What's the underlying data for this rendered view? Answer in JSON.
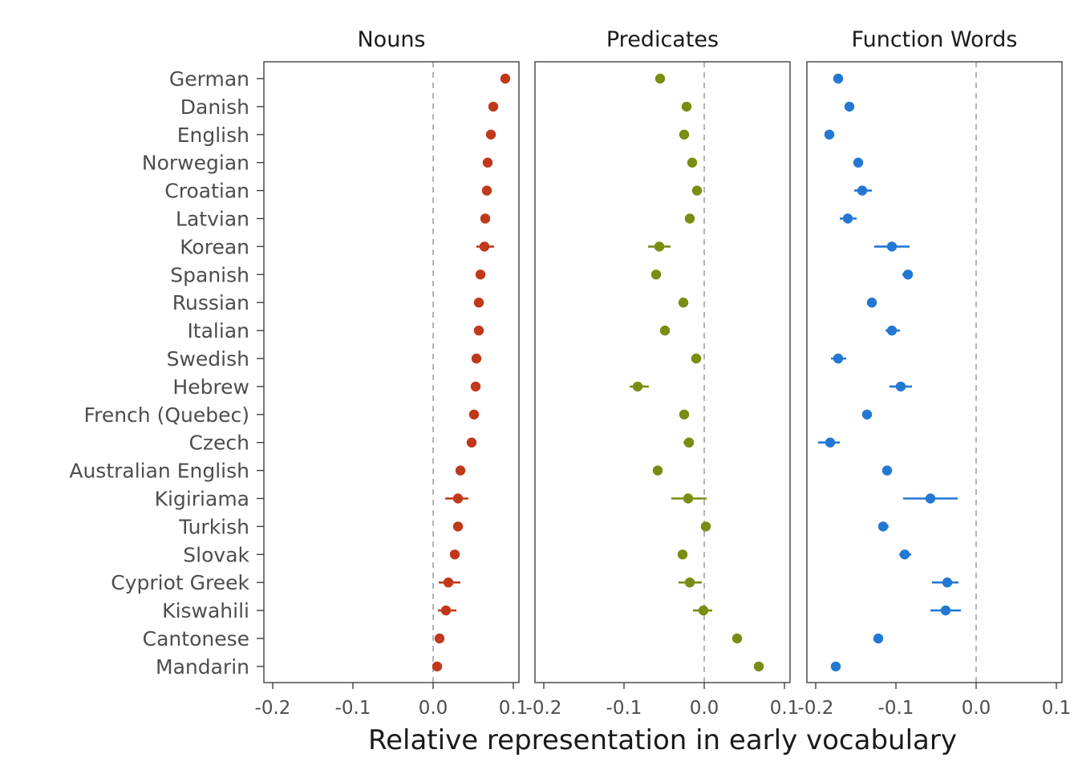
{
  "chart_data": {
    "type": "scatter",
    "xlabel": "Relative representation in early vocabulary",
    "xlim": [
      -0.2,
      0.1
    ],
    "xticks": [
      "-0.2",
      "-0.1",
      "0.0",
      "0.1"
    ],
    "reference_line_x": 0,
    "grid": false,
    "categories": [
      "German",
      "Danish",
      "English",
      "Norwegian",
      "Croatian",
      "Latvian",
      "Korean",
      "Spanish",
      "Russian",
      "Italian",
      "Swedish",
      "Hebrew",
      "French (Quebec)",
      "Czech",
      "Australian English",
      "Kigiriama",
      "Turkish",
      "Slovak",
      "Cypriot Greek",
      "Kiswahili",
      "Cantonese",
      "Mandarin"
    ],
    "panels": [
      {
        "title": "Nouns",
        "color": "#c0391b",
        "points": [
          {
            "x": 0.09,
            "lo": 0.09,
            "hi": 0.09
          },
          {
            "x": 0.075,
            "lo": 0.075,
            "hi": 0.075
          },
          {
            "x": 0.072,
            "lo": 0.072,
            "hi": 0.072
          },
          {
            "x": 0.068,
            "lo": 0.068,
            "hi": 0.068
          },
          {
            "x": 0.067,
            "lo": 0.067,
            "hi": 0.067
          },
          {
            "x": 0.065,
            "lo": 0.065,
            "hi": 0.065
          },
          {
            "x": 0.064,
            "lo": 0.054,
            "hi": 0.076
          },
          {
            "x": 0.059,
            "lo": 0.059,
            "hi": 0.059
          },
          {
            "x": 0.057,
            "lo": 0.057,
            "hi": 0.057
          },
          {
            "x": 0.057,
            "lo": 0.057,
            "hi": 0.057
          },
          {
            "x": 0.054,
            "lo": 0.054,
            "hi": 0.054
          },
          {
            "x": 0.053,
            "lo": 0.053,
            "hi": 0.053
          },
          {
            "x": 0.051,
            "lo": 0.051,
            "hi": 0.051
          },
          {
            "x": 0.048,
            "lo": 0.048,
            "hi": 0.048
          },
          {
            "x": 0.034,
            "lo": 0.034,
            "hi": 0.034
          },
          {
            "x": 0.031,
            "lo": 0.015,
            "hi": 0.044
          },
          {
            "x": 0.031,
            "lo": 0.031,
            "hi": 0.031
          },
          {
            "x": 0.027,
            "lo": 0.027,
            "hi": 0.027
          },
          {
            "x": 0.019,
            "lo": 0.007,
            "hi": 0.034
          },
          {
            "x": 0.016,
            "lo": 0.006,
            "hi": 0.029
          },
          {
            "x": 0.008,
            "lo": 0.008,
            "hi": 0.008
          },
          {
            "x": 0.005,
            "lo": 0.005,
            "hi": 0.005
          }
        ]
      },
      {
        "title": "Predicates",
        "color": "#7a8c12",
        "points": [
          {
            "x": -0.055,
            "lo": -0.055,
            "hi": -0.055
          },
          {
            "x": -0.022,
            "lo": -0.022,
            "hi": -0.022
          },
          {
            "x": -0.025,
            "lo": -0.025,
            "hi": -0.025
          },
          {
            "x": -0.015,
            "lo": -0.015,
            "hi": -0.015
          },
          {
            "x": -0.009,
            "lo": -0.014,
            "hi": -0.003
          },
          {
            "x": -0.018,
            "lo": -0.024,
            "hi": -0.012
          },
          {
            "x": -0.056,
            "lo": -0.07,
            "hi": -0.042
          },
          {
            "x": -0.06,
            "lo": -0.06,
            "hi": -0.06
          },
          {
            "x": -0.026,
            "lo": -0.026,
            "hi": -0.026
          },
          {
            "x": -0.049,
            "lo": -0.049,
            "hi": -0.049
          },
          {
            "x": -0.01,
            "lo": -0.01,
            "hi": -0.01
          },
          {
            "x": -0.083,
            "lo": -0.093,
            "hi": -0.069
          },
          {
            "x": -0.025,
            "lo": -0.025,
            "hi": -0.025
          },
          {
            "x": -0.019,
            "lo": -0.026,
            "hi": -0.013
          },
          {
            "x": -0.058,
            "lo": -0.058,
            "hi": -0.058
          },
          {
            "x": -0.02,
            "lo": -0.041,
            "hi": 0.003
          },
          {
            "x": 0.002,
            "lo": 0.002,
            "hi": 0.002
          },
          {
            "x": -0.027,
            "lo": -0.027,
            "hi": -0.027
          },
          {
            "x": -0.018,
            "lo": -0.032,
            "hi": -0.003
          },
          {
            "x": -0.001,
            "lo": -0.014,
            "hi": 0.01
          },
          {
            "x": 0.041,
            "lo": 0.041,
            "hi": 0.041
          },
          {
            "x": 0.068,
            "lo": 0.068,
            "hi": 0.068
          }
        ]
      },
      {
        "title": "Function Words",
        "color": "#2278d2",
        "points": [
          {
            "x": -0.172,
            "lo": -0.172,
            "hi": -0.172
          },
          {
            "x": -0.158,
            "lo": -0.158,
            "hi": -0.158
          },
          {
            "x": -0.183,
            "lo": -0.183,
            "hi": -0.183
          },
          {
            "x": -0.147,
            "lo": -0.147,
            "hi": -0.147
          },
          {
            "x": -0.142,
            "lo": -0.152,
            "hi": -0.13
          },
          {
            "x": -0.16,
            "lo": -0.17,
            "hi": -0.149
          },
          {
            "x": -0.105,
            "lo": -0.127,
            "hi": -0.083
          },
          {
            "x": -0.085,
            "lo": -0.092,
            "hi": -0.079
          },
          {
            "x": -0.13,
            "lo": -0.13,
            "hi": -0.13
          },
          {
            "x": -0.105,
            "lo": -0.113,
            "hi": -0.095
          },
          {
            "x": -0.172,
            "lo": -0.181,
            "hi": -0.162
          },
          {
            "x": -0.094,
            "lo": -0.108,
            "hi": -0.08
          },
          {
            "x": -0.136,
            "lo": -0.136,
            "hi": -0.136
          },
          {
            "x": -0.182,
            "lo": -0.197,
            "hi": -0.17
          },
          {
            "x": -0.111,
            "lo": -0.111,
            "hi": -0.111
          },
          {
            "x": -0.057,
            "lo": -0.091,
            "hi": -0.023
          },
          {
            "x": -0.116,
            "lo": -0.122,
            "hi": -0.109
          },
          {
            "x": -0.089,
            "lo": -0.096,
            "hi": -0.081
          },
          {
            "x": -0.036,
            "lo": -0.055,
            "hi": -0.022
          },
          {
            "x": -0.038,
            "lo": -0.057,
            "hi": -0.019
          },
          {
            "x": -0.122,
            "lo": -0.122,
            "hi": -0.122
          },
          {
            "x": -0.175,
            "lo": -0.175,
            "hi": -0.175
          }
        ]
      }
    ]
  }
}
